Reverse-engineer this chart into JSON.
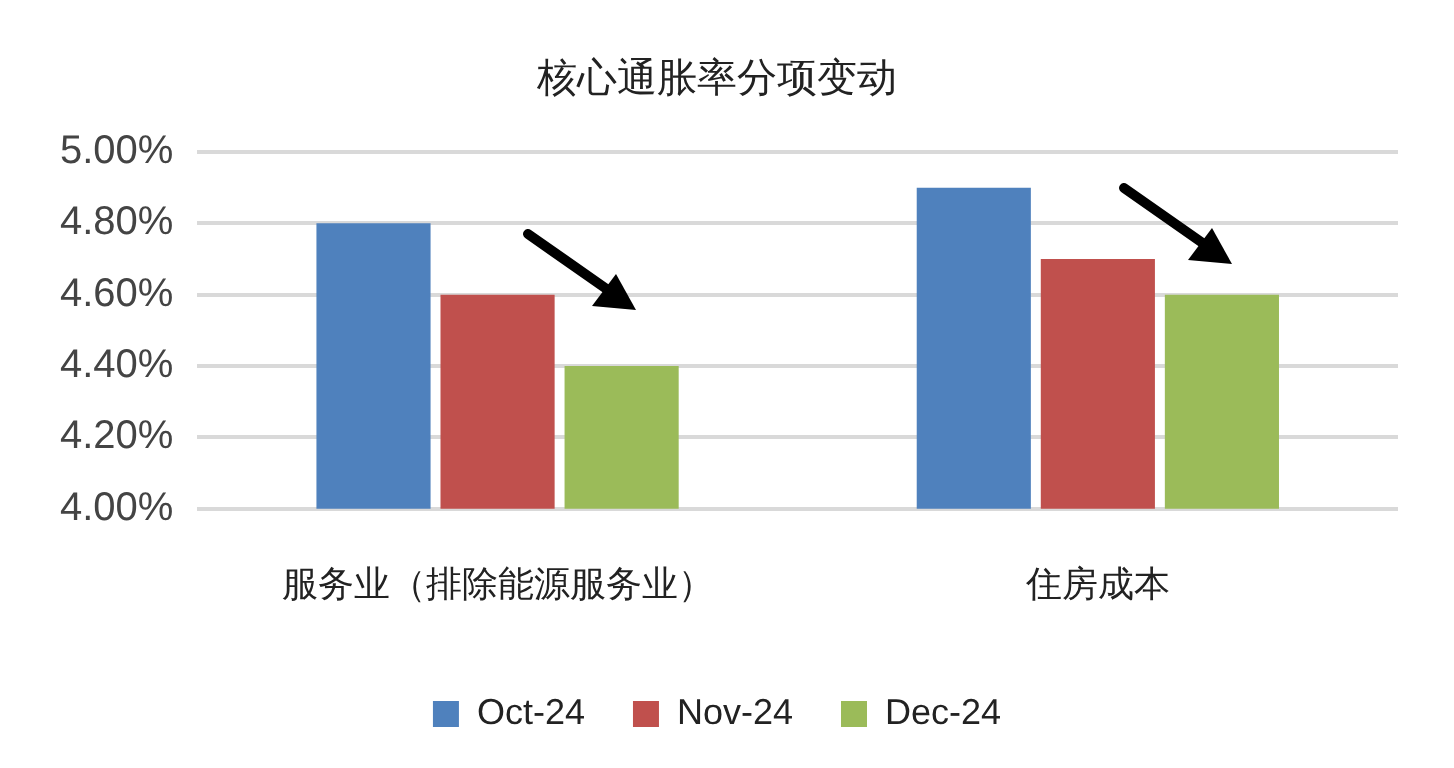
{
  "chart_data": {
    "type": "bar",
    "title": "核心通胀率分项变动",
    "categories": [
      "服务业（排除能源服务业）",
      "住房成本"
    ],
    "series": [
      {
        "name": "Oct-24",
        "color": "#4f81bd",
        "values": [
          4.8,
          4.9
        ]
      },
      {
        "name": "Nov-24",
        "color": "#c0504d",
        "values": [
          4.6,
          4.7
        ]
      },
      {
        "name": "Dec-24",
        "color": "#9bbb59",
        "values": [
          4.4,
          4.6
        ]
      }
    ],
    "ylim": [
      4,
      5
    ],
    "yticks": [
      {
        "value": 4,
        "label": "4.00%"
      },
      {
        "value": 4.2,
        "label": "4.20%"
      },
      {
        "value": 4.4,
        "label": "4.40%"
      },
      {
        "value": 4.6,
        "label": "4.60%"
      },
      {
        "value": 4.8,
        "label": "4.80%"
      },
      {
        "value": 5,
        "label": "5.00%"
      }
    ],
    "grid": "y",
    "legend": "bottom"
  }
}
